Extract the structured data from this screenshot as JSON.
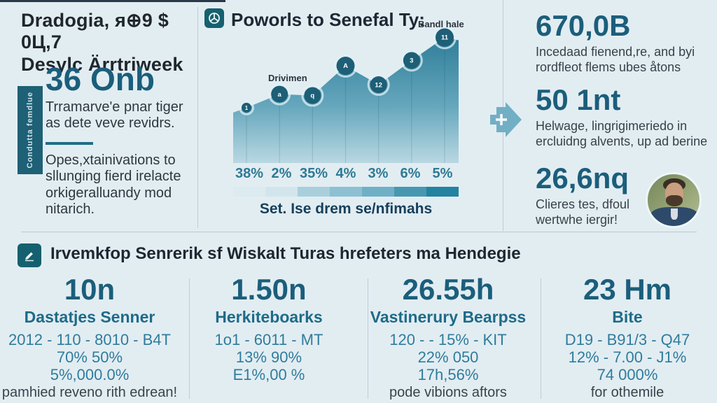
{
  "colors": {
    "background": "#e2edf2",
    "ink": "#20262e",
    "teal_dark": "#1b5e7b",
    "teal_mid": "#2d7a96",
    "banner": "#1e6075",
    "icon_square": "#15606f",
    "arrow": "#72afc4",
    "divider": "#bfccd4",
    "chart_fill_top": "#2f7e99",
    "chart_fill_bottom": "#b9d8e2"
  },
  "icons": {
    "chart_header": "wheel-badge-icon",
    "bottom_header": "pen-badge-icon",
    "between_columns": "arrow-right-plus-icon"
  },
  "misc": {
    "arrow_label": "+"
  },
  "header": {
    "title_line1": "Dradogia, я⊕9 $ 0Ц,7",
    "title_line2": "Desylc Ärrtriweek"
  },
  "left_panel": {
    "stat_value": "36 Onb",
    "stat_desc": "Trramarve'e pnar tiger as dete veve revidrs.",
    "note": "Opes,xtainivations to sllunging fierd irelacte orkigeralluandy mod nitarich.",
    "banner_text": "Condutta femdlue"
  },
  "chart_section": {
    "header": "Poworls to Senefal Ty:",
    "annotation_peak": "Bandl hale",
    "annotation_line": "Drivimen",
    "caption": "Set. Ise drem se/nfimahs",
    "chart_data": {
      "type": "area",
      "title": "Poworls to Senefal Ty:",
      "categories": [
        "38%",
        "2%",
        "35%",
        "4%",
        "3%",
        "6%",
        "5%"
      ],
      "values": [
        41,
        51,
        50,
        72,
        58,
        76,
        93
      ],
      "point_labels": [
        "1",
        "a",
        "q",
        "A",
        "12",
        "3",
        "11"
      ],
      "ylim": [
        0,
        100
      ],
      "xlabel": "Set. Ise drem se/nfimahs",
      "ylabel": "",
      "grid": false,
      "legend_position": "none",
      "annotations": [
        {
          "text": "Drivimen",
          "point_index": 1
        },
        {
          "text": "Bandl hale",
          "point_index": 6
        }
      ],
      "gradient_scale": [
        "#dcebf0",
        "#d3e5ec",
        "#a9cfdd",
        "#8cc0d2",
        "#6fb0c6",
        "#4897b0",
        "#2383a0"
      ]
    }
  },
  "right_stats": [
    {
      "value": "670,0B",
      "desc": "Incedaad fienend,re, and byi rordfleot flems ubes åtons"
    },
    {
      "value": "50 1nt",
      "desc": "Helwage, lingrigimeriedo in ercluidng alvents, up ad berine"
    },
    {
      "value": "26,6nq",
      "desc": "Clieres tes, dfoul wertwhe iergir!"
    }
  ],
  "bottom": {
    "header": "Irvemkfop Senrerik sf Wiskalt Turas hrefeters ma Hendegie",
    "columns": [
      {
        "value": "10n",
        "label": "Dastatjes Senner",
        "lines": [
          "2012 - 110 - 8010 - B4T",
          "70% 50%",
          "5%,000.0%"
        ],
        "footnote": "pamhied reveno rith edrean!"
      },
      {
        "value": "1.50n",
        "label": "Herkiteboarks",
        "lines": [
          "1o1 - 6011 - MT",
          "13% 90%",
          "E1%,00 %"
        ],
        "footnote": ""
      },
      {
        "value": "26.55h",
        "label": "Vastinerury Bearpss",
        "lines": [
          "120 - - 15% - KIT",
          "22% 050",
          "17h,56%"
        ],
        "footnote": "pode vibions aftors"
      },
      {
        "value": "23 Hm",
        "label": "Bite",
        "lines": [
          "D19 - B91/3 - Q47",
          "12% - 7.00 - J1%",
          "74 000%"
        ],
        "footnote": "for othemile"
      }
    ]
  }
}
